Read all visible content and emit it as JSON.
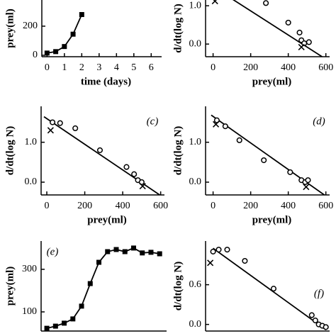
{
  "chart_data": [
    {
      "type": "line",
      "xlabel": "time (days)",
      "ylabel": "prey(ml)",
      "xlim": [
        -0.3,
        6.6
      ],
      "ylim": [
        -10,
        380
      ],
      "xticks": [
        0,
        1,
        2,
        3,
        4,
        5,
        6
      ],
      "yticks": [
        0,
        200
      ],
      "series": [
        {
          "marker": "square",
          "line": true,
          "color": "#000",
          "x": [
            0,
            0.5,
            1,
            1.5,
            2
          ],
          "values": [
            15,
            25,
            60,
            145,
            280
          ]
        }
      ]
    },
    {
      "type": "scatter",
      "xlabel": "prey(ml)",
      "ylabel": "d/dt(log N)",
      "xlim": [
        -40,
        620
      ],
      "ylim": [
        -0.33,
        1.15
      ],
      "xticks": [
        0,
        200,
        400,
        600
      ],
      "yticks": [
        {
          "value": 0,
          "label": "0.0"
        },
        {
          "value": 1,
          "label": "1.0"
        }
      ],
      "series": [
        {
          "marker": "circle",
          "line": false,
          "color": "#000",
          "x": [
            281,
            400,
            460,
            470,
            485,
            510
          ],
          "values": [
            1.07,
            0.56,
            0.3,
            0.1,
            0.02,
            0.05
          ]
        },
        {
          "marker": "cross",
          "line": false,
          "color": "#000",
          "x": [
            10,
            470
          ],
          "values": [
            1.12,
            -0.08
          ]
        },
        {
          "marker": "none",
          "line": true,
          "color": "#000",
          "x": [
            100,
            580
          ],
          "values": [
            1.18,
            -0.33
          ]
        }
      ]
    },
    {
      "type": "scatter",
      "panel": "(c)",
      "xlabel": "prey(ml)",
      "ylabel": "d/dt(log N)",
      "xlim": [
        -30,
        620
      ],
      "ylim": [
        -0.32,
        1.9
      ],
      "xticks": [
        0,
        200,
        400,
        600
      ],
      "yticks": [
        {
          "value": 0,
          "label": "0.0"
        },
        {
          "value": 1,
          "label": "1.0"
        }
      ],
      "series": [
        {
          "marker": "circle",
          "line": false,
          "color": "#000",
          "x": [
            30,
            70,
            150,
            280,
            420,
            460,
            480,
            500
          ],
          "values": [
            1.5,
            1.48,
            1.35,
            0.8,
            0.38,
            0.2,
            0.05,
            0.0
          ]
        },
        {
          "marker": "cross",
          "line": false,
          "color": "#000",
          "x": [
            20,
            505
          ],
          "values": [
            1.3,
            -0.1
          ]
        },
        {
          "marker": "none",
          "line": true,
          "color": "#000",
          "x": [
            -15,
            620
          ],
          "values": [
            1.64,
            -0.4
          ]
        }
      ]
    },
    {
      "type": "scatter",
      "panel": "(d)",
      "xlabel": "prey(ml)",
      "ylabel": "d/dt(log N)",
      "xlim": [
        -40,
        620
      ],
      "ylim": [
        -0.32,
        1.9
      ],
      "xticks": [
        0,
        200,
        400,
        600
      ],
      "yticks": [
        {
          "value": 0,
          "label": "0.0"
        },
        {
          "value": 1,
          "label": "1.0"
        }
      ],
      "series": [
        {
          "marker": "circle",
          "line": false,
          "color": "#000",
          "x": [
            20,
            65,
            140,
            270,
            410,
            470,
            490,
            505
          ],
          "values": [
            1.55,
            1.4,
            1.05,
            0.55,
            0.25,
            0.05,
            0.0,
            0.05
          ]
        },
        {
          "marker": "cross",
          "line": false,
          "color": "#000",
          "x": [
            15,
            495
          ],
          "values": [
            1.45,
            -0.12
          ]
        },
        {
          "marker": "none",
          "line": true,
          "color": "#000",
          "x": [
            -10,
            610
          ],
          "values": [
            1.68,
            -0.38
          ]
        }
      ]
    },
    {
      "type": "line",
      "panel": "(e)",
      "ylabel": "prey(ml)",
      "xlim": [
        -0.33,
        6.9
      ],
      "ylim": [
        10,
        433
      ],
      "yticks": [
        100,
        300
      ],
      "series": [
        {
          "marker": "square",
          "line": true,
          "color": "#000",
          "x": [
            0,
            0.5,
            1,
            1.5,
            2,
            2.5,
            3,
            3.5,
            4,
            4.5,
            5,
            5.5,
            6,
            6.5
          ],
          "values": [
            23,
            33,
            47,
            67,
            127,
            233,
            333,
            383,
            393,
            383,
            400,
            377,
            380,
            373
          ]
        }
      ]
    },
    {
      "type": "scatter",
      "panel": "(f)",
      "ylabel": "d/dt(log N)",
      "xlim": [
        -40,
        620
      ],
      "ylim": [
        -0.1,
        1.26
      ],
      "yticks": [
        {
          "value": 0,
          "label": "0.0"
        },
        {
          "value": 0.6,
          "label": "0.6"
        }
      ],
      "series": [
        {
          "marker": "circle",
          "line": false,
          "color": "#000",
          "x": [
            0,
            30,
            75,
            169,
            322,
            525,
            544,
            562,
            581,
            600
          ],
          "values": [
            1.1,
            1.13,
            1.13,
            0.96,
            0.54,
            0.14,
            0.06,
            0.0,
            -0.02,
            -0.04
          ]
        },
        {
          "marker": "cross",
          "line": false,
          "color": "#000",
          "x": [
            -15
          ],
          "values": [
            0.93
          ]
        },
        {
          "marker": "none",
          "line": true,
          "color": "#000",
          "x": [
            0,
            600
          ],
          "values": [
            1.15,
            -0.08
          ]
        }
      ]
    }
  ]
}
